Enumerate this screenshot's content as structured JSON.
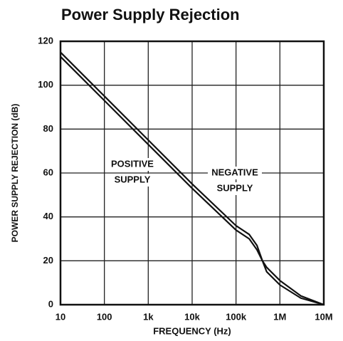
{
  "chart_data": {
    "type": "line",
    "title": "Power Supply Rejection",
    "xlabel": "FREQUENCY (Hz)",
    "ylabel": "POWER SUPPLY REJECTION (dB)",
    "xscale": "log",
    "grid": true,
    "x": [
      10,
      100,
      1000,
      10000,
      100000,
      200000,
      300000,
      400000,
      500000,
      1000000,
      3000000,
      10000000
    ],
    "series": [
      {
        "name": "POSITIVE SUPPLY",
        "color": "#111111",
        "values": [
          115,
          95,
          75,
          55,
          36,
          32,
          27,
          20,
          17,
          11,
          4,
          0
        ]
      },
      {
        "name": "NEGATIVE SUPPLY",
        "color": "#111111",
        "values": [
          113,
          93,
          73,
          53,
          34,
          30,
          25,
          20,
          15,
          9,
          3,
          0
        ]
      }
    ],
    "annotations": [
      {
        "lines": [
          "POSITIVE",
          "SUPPLY"
        ]
      },
      {
        "lines": [
          "NEGATIVE",
          "SUPPLY"
        ]
      }
    ],
    "xlim": [
      10,
      10000000
    ],
    "xticks": [
      10,
      100,
      {
        "value": 1000,
        "label": "1k"
      },
      {
        "value": 10000,
        "label": "10k"
      },
      {
        "value": 100000,
        "label": "100k"
      },
      {
        "value": 1000000,
        "label": "1M"
      },
      {
        "value": 10000000,
        "label": "10M"
      }
    ],
    "ylim": [
      0,
      120
    ],
    "yticks": [
      0,
      20,
      40,
      60,
      80,
      100,
      120
    ]
  }
}
